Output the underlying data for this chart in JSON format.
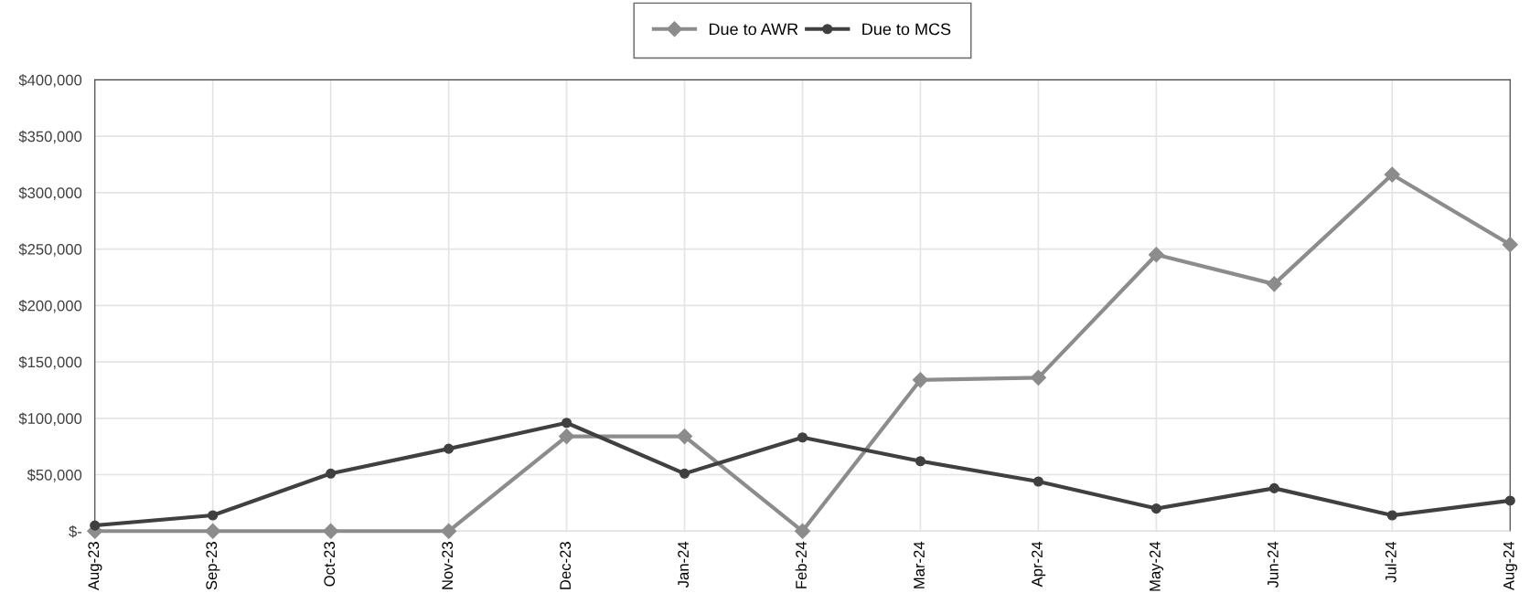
{
  "chart_data": {
    "type": "line",
    "categories": [
      "Aug-23",
      "Sep-23",
      "Oct-23",
      "Nov-23",
      "Dec-23",
      "Jan-24",
      "Feb-24",
      "Mar-24",
      "Apr-24",
      "May-24",
      "Jun-24",
      "Jul-24",
      "Aug-24"
    ],
    "series": [
      {
        "name": "Due to AWR",
        "color": "#8c8c8c",
        "marker": "diamond",
        "values": [
          0,
          0,
          0,
          0,
          84000,
          84000,
          0,
          134000,
          136000,
          245000,
          219000,
          316000,
          254000
        ]
      },
      {
        "name": "Due to MCS",
        "color": "#404040",
        "marker": "circle",
        "values": [
          5000,
          14000,
          51000,
          73000,
          96000,
          51000,
          83000,
          62000,
          44000,
          20000,
          38000,
          14000,
          27000
        ]
      }
    ],
    "ylim": [
      0,
      400000
    ],
    "yticks": [
      {
        "value": 0,
        "label": "$-"
      },
      {
        "value": 50000,
        "label": "$50,000"
      },
      {
        "value": 100000,
        "label": "$100,000"
      },
      {
        "value": 150000,
        "label": "$150,000"
      },
      {
        "value": 200000,
        "label": "$200,000"
      },
      {
        "value": 250000,
        "label": "$250,000"
      },
      {
        "value": 300000,
        "label": "$300,000"
      },
      {
        "value": 350000,
        "label": "$350,000"
      },
      {
        "value": 400000,
        "label": "$400,000"
      }
    ],
    "grid": true,
    "legend": "top",
    "line_style": "solid"
  }
}
